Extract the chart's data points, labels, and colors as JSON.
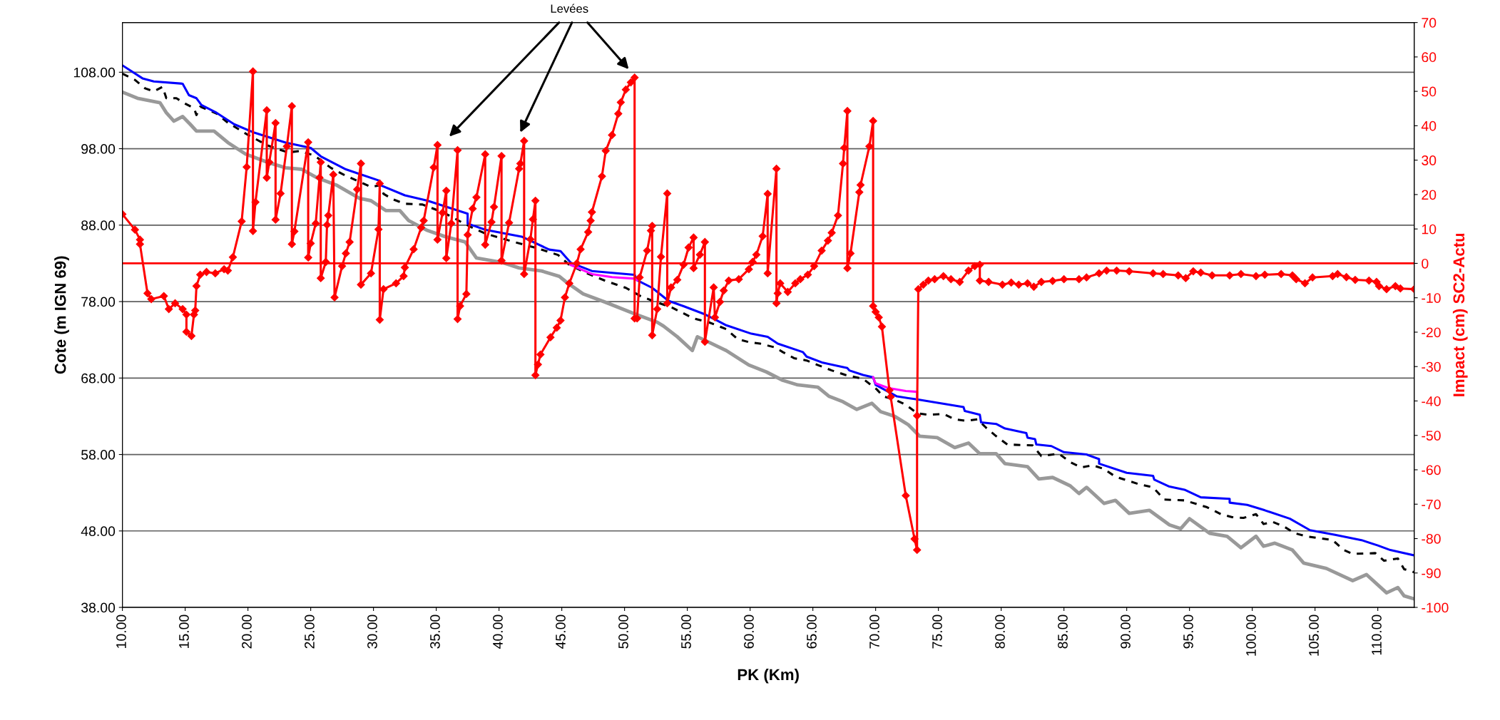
{
  "chart_data": {
    "type": "line",
    "xlabel": "PK (Km)",
    "ylabel": "Cote (m IGN 69)",
    "y2label": "Impact (cm) SC2-Actu",
    "xlim": [
      10,
      112.9
    ],
    "ylim": [
      38,
      114.5
    ],
    "y2lim": [
      -100,
      70
    ],
    "xticks": [
      {
        "value": 10,
        "label": "10.00"
      },
      {
        "value": 15,
        "label": "15.00"
      },
      {
        "value": 20,
        "label": "20.00"
      },
      {
        "value": 25,
        "label": "25.00"
      },
      {
        "value": 30,
        "label": "30.00"
      },
      {
        "value": 35,
        "label": "35.00"
      },
      {
        "value": 40,
        "label": "40.00"
      },
      {
        "value": 45,
        "label": "45.00"
      },
      {
        "value": 50,
        "label": "50.00"
      },
      {
        "value": 55,
        "label": "55.00"
      },
      {
        "value": 60,
        "label": "60.00"
      },
      {
        "value": 65,
        "label": "65.00"
      },
      {
        "value": 70,
        "label": "70.00"
      },
      {
        "value": 75,
        "label": "75.00"
      },
      {
        "value": 80,
        "label": "80.00"
      },
      {
        "value": 85,
        "label": "85.00"
      },
      {
        "value": 90,
        "label": "90.00"
      },
      {
        "value": 95,
        "label": "95.00"
      },
      {
        "value": 100,
        "label": "100.00"
      },
      {
        "value": 105,
        "label": "105.00"
      },
      {
        "value": 110,
        "label": "110.00"
      }
    ],
    "yticks": [
      {
        "value": 38,
        "label": "38.00"
      },
      {
        "value": 48,
        "label": "48.00"
      },
      {
        "value": 58,
        "label": "58.00"
      },
      {
        "value": 68,
        "label": "68.00"
      },
      {
        "value": 78,
        "label": "78.00"
      },
      {
        "value": 88,
        "label": "88.00"
      },
      {
        "value": 98,
        "label": "98.00"
      },
      {
        "value": 108,
        "label": "108.00"
      }
    ],
    "y2ticks": [
      -100,
      -90,
      -80,
      -70,
      -60,
      -50,
      -40,
      -30,
      -20,
      -10,
      0,
      10,
      20,
      30,
      40,
      50,
      60,
      70
    ],
    "grid": "y",
    "legend": false,
    "ref_lines": [
      {
        "axis": "y2",
        "value": 0,
        "color": "#ff0000",
        "line_style": "solid"
      }
    ],
    "annotations": [
      "Levées"
    ],
    "series": [
      {
        "color": "#999999",
        "line_style": "solid",
        "marker": "none",
        "x": [
          10,
          11.2,
          13.0,
          13.5,
          14.1,
          14.8,
          15.4,
          15.9,
          17.3,
          18.4,
          19.8,
          21.6,
          23.0,
          24.3,
          25.5,
          27.1,
          28.9,
          29.8,
          31.0,
          32.1,
          32.8,
          34.3,
          35.7,
          37.3,
          38.2,
          40.3,
          41.6,
          43.4,
          44.8,
          45.4,
          46.7,
          48.5,
          50.8,
          52.6,
          53.1,
          54.2,
          55.4,
          55.8,
          56.7,
          58.1,
          59.9,
          61.3,
          62.6,
          63.8,
          65.4,
          66.3,
          67.4,
          68.5,
          69.7,
          70.4,
          71.5,
          72.6,
          73.5,
          74.9,
          76.3,
          77.4,
          78.3,
          79.6,
          80.3,
          82.1,
          83.0,
          84.1,
          85.5,
          86.2,
          86.8,
          88.2,
          89.1,
          90.2,
          91.8,
          93.4,
          94.3,
          95.0,
          96.6,
          98.0,
          99.1,
          100.3,
          100.9,
          101.8,
          103.2,
          104.1,
          105.9,
          108.0,
          109.1,
          110.7,
          111.6,
          112.1,
          112.9
        ],
        "values": [
          105.4,
          104.6,
          104.0,
          102.7,
          101.6,
          102.2,
          101.2,
          100.3,
          100.3,
          98.8,
          97.3,
          96.2,
          95.5,
          95.3,
          94.2,
          93.2,
          91.5,
          91.2,
          89.9,
          89.9,
          88.6,
          87.3,
          86.5,
          85.8,
          83.7,
          83.1,
          82.4,
          82.0,
          81.3,
          80.5,
          79.0,
          77.9,
          76.4,
          75.3,
          74.8,
          73.4,
          71.6,
          73.4,
          72.7,
          71.6,
          69.7,
          68.8,
          67.7,
          67.1,
          66.8,
          65.6,
          64.9,
          63.9,
          64.7,
          63.6,
          63.0,
          61.9,
          60.4,
          60.2,
          58.9,
          59.5,
          58.1,
          58.1,
          56.8,
          56.4,
          54.8,
          55.0,
          53.9,
          52.9,
          53.7,
          51.6,
          52.0,
          50.3,
          50.7,
          48.8,
          48.3,
          49.6,
          47.7,
          47.3,
          45.8,
          47.3,
          46.0,
          46.4,
          45.5,
          43.8,
          43.1,
          41.5,
          42.3,
          39.9,
          40.6,
          39.5,
          39.1
        ]
      },
      {
        "color": "#000000",
        "line_style": "dashed",
        "marker": "none",
        "x": [
          10,
          11.0,
          11.8,
          12.5,
          13.2,
          13.5,
          14.3,
          15.0,
          15.7,
          15.9,
          16.2,
          17.5,
          18.4,
          20.0,
          21.6,
          23.2,
          24.1,
          25.3,
          26.6,
          27.5,
          29.8,
          30.5,
          30.8,
          31.5,
          32.5,
          33.9,
          35.5,
          37.7,
          38.9,
          41.2,
          43.0,
          44.7,
          45.6,
          47.0,
          48.5,
          50.1,
          51.3,
          52.4,
          53.8,
          55.5,
          56.7,
          58.1,
          59.0,
          59.9,
          60.8,
          62.0,
          62.6,
          63.5,
          64.5,
          65.4,
          66.5,
          67.6,
          69.0,
          70.1,
          70.6,
          71.5,
          72.4,
          73.3,
          74.2,
          75.4,
          76.3,
          77.2,
          78.1,
          78.8,
          79.6,
          80.5,
          82.5,
          83.2,
          84.6,
          85.5,
          86.4,
          87.3,
          88.2,
          89.1,
          91.0,
          92.1,
          93.0,
          94.6,
          96.4,
          97.5,
          98.4,
          99.3,
          100.3,
          100.9,
          101.6,
          102.5,
          103.4,
          104.3,
          106.4,
          107.3,
          108.0,
          109.8,
          110.5,
          111.6,
          112.1,
          112.9
        ],
        "values": [
          107.8,
          107.0,
          105.9,
          105.5,
          106.1,
          104.6,
          104.6,
          103.9,
          103.3,
          102.4,
          103.5,
          102.6,
          101.4,
          99.8,
          98.4,
          97.5,
          97.7,
          97.1,
          95.5,
          94.7,
          93.0,
          93.2,
          92.1,
          91.4,
          90.8,
          90.7,
          89.7,
          87.8,
          86.9,
          85.8,
          85.0,
          84.1,
          82.8,
          81.7,
          80.7,
          79.8,
          78.7,
          78.0,
          77.2,
          75.8,
          75.3,
          74.4,
          73.1,
          72.7,
          72.5,
          72.0,
          71.4,
          70.6,
          70.3,
          69.7,
          69.0,
          68.4,
          67.9,
          66.5,
          65.6,
          65.2,
          64.5,
          63.4,
          63.2,
          63.3,
          62.6,
          62.4,
          62.6,
          61.5,
          60.4,
          59.3,
          59.2,
          57.8,
          58.1,
          57.0,
          56.3,
          56.6,
          56.1,
          55.1,
          54.1,
          53.7,
          52.1,
          52.0,
          51.1,
          50.2,
          49.8,
          49.7,
          50.2,
          48.9,
          49.2,
          48.6,
          47.7,
          47.3,
          46.8,
          45.5,
          45.0,
          45.1,
          44.1,
          44.4,
          43.0,
          42.6
        ]
      },
      {
        "color": "#0000ff",
        "line_style": "solid",
        "marker": "none",
        "x": [
          10,
          11.6,
          12.5,
          14.8,
          15.3,
          15.9,
          16.3,
          17.5,
          18.9,
          20.5,
          23.0,
          25.0,
          25.8,
          27.8,
          30.5,
          30.6,
          32.5,
          34.3,
          37.5,
          37.5,
          38.9,
          41.8,
          44.0,
          44.9,
          45.7,
          47.4,
          50.8,
          51.0,
          52.2,
          53.5,
          54.7,
          56.3,
          57.4,
          58.1,
          60.1,
          61.4,
          62.2,
          64.2,
          64.5,
          65.8,
          67.75,
          67.9,
          69.0,
          69.8,
          70.0,
          71.7,
          73.3,
          77.0,
          77.1,
          78.3,
          78.4,
          79.6,
          80.3,
          82.0,
          82.1,
          82.7,
          82.8,
          84.0,
          85.0,
          86.8,
          87.8,
          87.8,
          90.0,
          92.1,
          92.2,
          93.4,
          94.6,
          95.9,
          98.2,
          98.2,
          99.6,
          101.0,
          103.0,
          104.6,
          106.6,
          108.7,
          110.0,
          111.0,
          112.9
        ],
        "values": [
          108.9,
          107.2,
          106.8,
          106.5,
          105.0,
          104.6,
          103.7,
          102.7,
          101.2,
          100.1,
          98.8,
          98.1,
          97.0,
          95.3,
          93.8,
          93.2,
          91.9,
          91.2,
          89.5,
          88.2,
          87.4,
          86.5,
          84.8,
          84.6,
          83.1,
          82.0,
          81.5,
          80.8,
          79.8,
          78.1,
          77.4,
          76.4,
          75.5,
          74.9,
          73.8,
          73.4,
          72.5,
          71.4,
          70.8,
          70.0,
          69.3,
          69.0,
          68.4,
          68.1,
          67.1,
          65.6,
          65.2,
          64.2,
          63.7,
          63.2,
          62.2,
          62.0,
          61.4,
          60.8,
          60.2,
          60.0,
          59.3,
          59.1,
          58.3,
          58.0,
          57.4,
          56.8,
          55.6,
          55.2,
          54.7,
          53.8,
          53.4,
          52.4,
          52.2,
          51.7,
          51.4,
          50.7,
          49.6,
          48.1,
          47.5,
          46.8,
          46.1,
          45.5,
          44.8
        ]
      },
      {
        "color": "#ff00ff",
        "line_style": "solid",
        "marker": "none",
        "x": [
          45.7,
          47.4,
          49.0,
          50.8,
          51.0,
          60.0,
          69.8,
          70.0,
          71.0,
          72.4,
          73.3,
          73.3
        ],
        "values": [
          82.8,
          81.6,
          81.2,
          81.0,
          80.8,
          null,
          68.1,
          67.3,
          66.7,
          66.3,
          66.2,
          65.2
        ]
      },
      {
        "color": "#ff0000",
        "axis": "y2",
        "line_style": "solid",
        "marker": "diamond",
        "x": [
          10,
          11.0,
          11.4,
          11.4,
          12.0,
          12.3,
          13.3,
          13.7,
          14.2,
          14.8,
          15.1,
          15.1,
          15.5,
          15.7,
          15.8,
          15.9,
          16.2,
          16.7,
          17.4,
          18.1,
          18.4,
          18.8,
          19.5,
          19.9,
          20.4,
          20.4,
          20.6,
          21.5,
          21.5,
          21.7,
          22.2,
          22.2,
          22.6,
          23.1,
          23.5,
          23.5,
          23.7,
          24.8,
          24.8,
          25.0,
          25.4,
          25.7,
          25.8,
          25.8,
          26.2,
          26.3,
          26.4,
          26.8,
          26.9,
          27.5,
          27.8,
          28.1,
          28.7,
          29.0,
          29.0,
          29.8,
          30.4,
          30.5,
          30.5,
          30.8,
          31.8,
          32.4,
          32.5,
          33.2,
          33.8,
          34.0,
          34.8,
          35.1,
          35.1,
          35.5,
          35.8,
          35.8,
          36.2,
          36.7,
          36.7,
          36.9,
          37.4,
          37.5,
          37.9,
          38.2,
          38.9,
          38.9,
          39.4,
          39.6,
          40.2,
          40.2,
          40.8,
          41.6,
          41.7,
          42.0,
          42.0,
          42.5,
          42.7,
          42.9,
          42.9,
          43.1,
          43.3,
          44.1,
          44.6,
          44.9,
          45.25,
          45.6,
          46.2,
          46.5,
          47.1,
          47.3,
          47.4,
          48.2,
          48.5,
          49.0,
          49.5,
          49.7,
          50.1,
          50.5,
          50.8,
          50.8,
          51.0,
          51.2,
          51.8,
          52.1,
          52.2,
          52.2,
          52.6,
          52.9,
          53.4,
          53.4,
          53.7,
          54.2,
          54.7,
          55.1,
          55.5,
          55.5,
          56.0,
          56.4,
          56.4,
          57.1,
          57.2,
          57.6,
          57.9,
          58.3,
          59.1,
          59.9,
          60.2,
          60.5,
          61.0,
          61.4,
          61.4,
          62.1,
          62.1,
          62.2,
          62.4,
          63.0,
          63.6,
          64.0,
          64.6,
          65.1,
          65.7,
          66.2,
          66.5,
          67.0,
          67.4,
          67.5,
          67.75,
          67.75,
          68.0,
          68.7,
          68.8,
          69.5,
          69.8,
          69.8,
          70.0,
          70.25,
          70.5,
          71.1,
          71.2,
          72.4,
          73.1,
          73.3,
          73.3,
          73.4,
          73.8,
          74.2,
          74.7,
          75.4,
          76.0,
          76.7,
          77.4,
          77.9,
          78.3,
          78.3,
          79.0,
          80.1,
          80.8,
          81.4,
          82.1,
          82.6,
          83.2,
          84.1,
          85.0,
          86.2,
          86.8,
          87.8,
          88.4,
          89.2,
          90.2,
          92.1,
          92.9,
          94.1,
          94.7,
          95.3,
          95.9,
          96.8,
          98.2,
          99.1,
          100.3,
          101.0,
          102.3,
          103.2,
          103.5,
          104.2,
          104.8,
          106.4,
          106.8,
          107.5,
          108.2,
          109.3,
          109.9,
          110.1,
          110.7,
          111.4,
          111.8,
          112.9
        ],
        "values": [
          14.3,
          9.8,
          6.9,
          5.6,
          -8.7,
          -10.4,
          -9.5,
          -13.3,
          -11.6,
          -13.3,
          -14.9,
          -19.9,
          -21.1,
          -14.9,
          -13.7,
          -6.6,
          -3.3,
          -2.5,
          -2.9,
          -1.7,
          -2.1,
          1.8,
          12.2,
          28.0,
          55.8,
          9.4,
          17.8,
          44.5,
          24.9,
          29.4,
          40.8,
          12.7,
          20.3,
          34.0,
          45.7,
          5.6,
          9.3,
          35.2,
          1.7,
          5.8,
          11.6,
          24.9,
          29.4,
          -4.3,
          0.4,
          11.2,
          13.9,
          25.8,
          -9.9,
          -0.8,
          2.9,
          6.2,
          21.5,
          29.0,
          -6.2,
          -2.9,
          9.9,
          23.2,
          -16.4,
          -7.5,
          -5.8,
          -3.7,
          -1.2,
          4.1,
          10.4,
          12.4,
          27.9,
          34.4,
          6.9,
          14.7,
          21.1,
          1.5,
          11.6,
          32.9,
          -16.2,
          -12.4,
          -8.9,
          8.3,
          15.9,
          19.2,
          31.7,
          5.4,
          12.0,
          16.4,
          31.2,
          0.8,
          11.8,
          27.5,
          29.0,
          35.6,
          -3.1,
          7.0,
          12.8,
          18.2,
          -32.5,
          -29.4,
          -26.5,
          -21.5,
          -18.7,
          -16.6,
          -9.9,
          -5.8,
          0,
          4.1,
          9.1,
          12.4,
          14.9,
          25.3,
          32.7,
          37.3,
          43.5,
          46.8,
          50.5,
          52.6,
          54.0,
          -16.0,
          -16.0,
          -4.1,
          3.7,
          9.5,
          10.9,
          -20.9,
          -13.3,
          1.9,
          20.3,
          -11.6,
          -7.0,
          -4.8,
          -0.4,
          4.6,
          7.5,
          -1.4,
          2.5,
          6.2,
          -22.8,
          -7.0,
          -15.7,
          -11.2,
          -7.9,
          -5.0,
          -4.6,
          -1.7,
          0.4,
          2.5,
          7.9,
          20.2,
          -2.9,
          27.5,
          -11.6,
          -8.7,
          -5.8,
          -8.3,
          -5.8,
          -4.6,
          -3.3,
          -0.8,
          3.7,
          6.6,
          8.9,
          13.9,
          29.0,
          33.6,
          44.3,
          -1.4,
          2.9,
          20.7,
          22.8,
          34.0,
          41.4,
          -12.4,
          -14.1,
          -15.7,
          -18.4,
          -36.9,
          -38.8,
          -67.5,
          -80.1,
          -83.3,
          -44.3,
          -7.5,
          -6.2,
          -5.0,
          -4.6,
          -3.7,
          -4.6,
          -5.4,
          -2.1,
          -0.8,
          -0.4,
          -5.0,
          -5.4,
          -6.2,
          -5.6,
          -6.2,
          -5.8,
          -6.8,
          -5.4,
          -5.1,
          -4.6,
          -4.6,
          -4.1,
          -2.9,
          -2.1,
          -2.1,
          -2.3,
          -2.9,
          -3.1,
          -3.5,
          -4.3,
          -2.3,
          -2.7,
          -3.5,
          -3.5,
          -3.1,
          -3.7,
          -3.3,
          -3.1,
          -3.5,
          -4.6,
          -5.8,
          -4.1,
          -3.7,
          -3.1,
          -4.0,
          -4.8,
          -5.0,
          -5.4,
          -6.6,
          -7.5,
          -6.6,
          -7.3,
          -7.5
        ]
      }
    ]
  }
}
